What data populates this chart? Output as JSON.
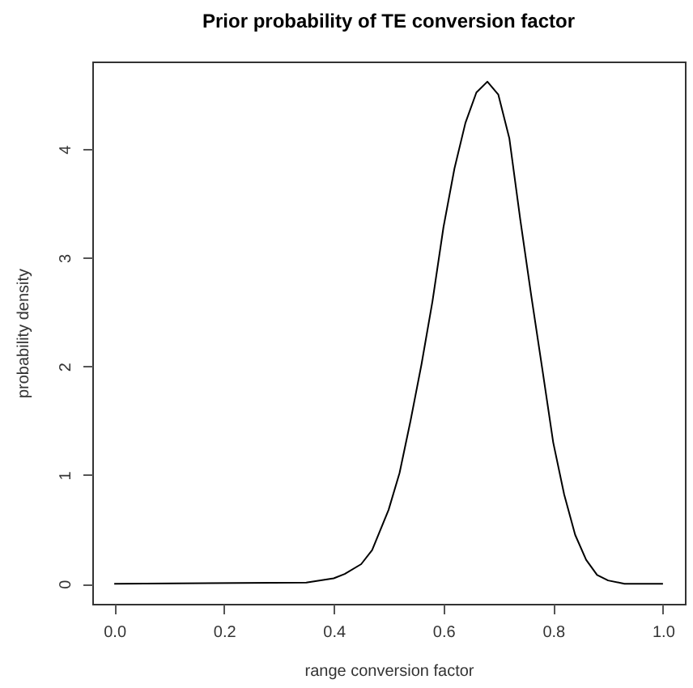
{
  "chart_data": {
    "type": "line",
    "title": "Prior probability of TE conversion factor",
    "xlabel": "range conversion factor",
    "ylabel": "probability density",
    "x": [
      0,
      0.35,
      0.4,
      0.42,
      0.45,
      0.47,
      0.5,
      0.52,
      0.54,
      0.56,
      0.58,
      0.6,
      0.62,
      0.64,
      0.66,
      0.68,
      0.7,
      0.72,
      0.74,
      0.76,
      0.78,
      0.8,
      0.82,
      0.84,
      0.86,
      0.88,
      0.9,
      0.93,
      1.0
    ],
    "series": [
      {
        "color": "#000000",
        "values": [
          0,
          0.01,
          0.05,
          0.09,
          0.18,
          0.31,
          0.68,
          1.02,
          1.5,
          2.02,
          2.6,
          3.28,
          3.82,
          4.24,
          4.52,
          4.62,
          4.5,
          4.1,
          3.35,
          2.65,
          1.98,
          1.3,
          0.82,
          0.45,
          0.22,
          0.08,
          0.03,
          0,
          0
        ]
      }
    ],
    "xlim": [
      -0.04,
      1.04
    ],
    "ylim": [
      -0.185,
      4.805
    ],
    "xticks": [
      {
        "value": 0,
        "label": "0.0"
      },
      0.2,
      0.4,
      0.6,
      0.8,
      {
        "value": 1,
        "label": "1.0"
      }
    ],
    "yticks": [
      0,
      1,
      2,
      3,
      4
    ],
    "grid": false,
    "marker": "none",
    "line_style": "solid"
  }
}
